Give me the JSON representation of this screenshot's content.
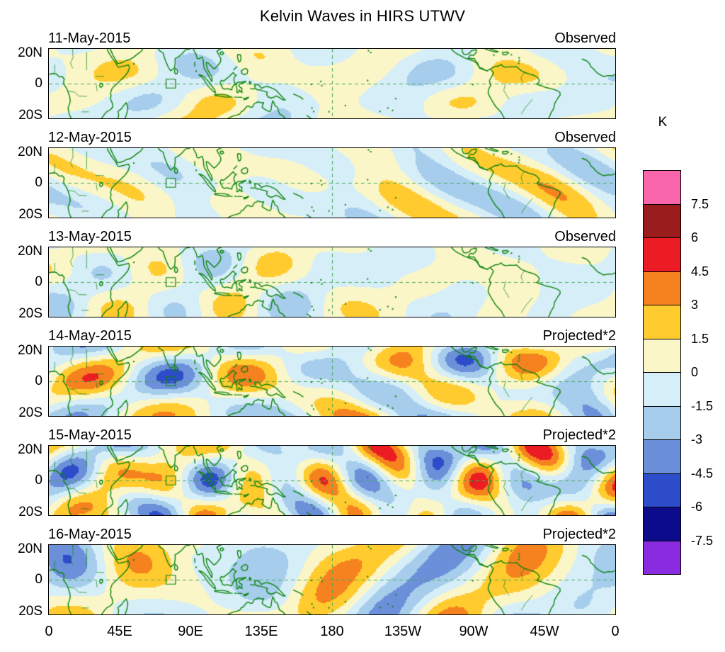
{
  "figure": {
    "title": "Kelvin Waves in HIRS UTWV"
  },
  "axes": {
    "x_ticks": [
      "0",
      "45E",
      "90E",
      "135E",
      "180",
      "135W",
      "90W",
      "45W",
      "0"
    ],
    "y_ticks": [
      "20N",
      "0",
      "20S"
    ]
  },
  "panels": [
    {
      "date": "11-May-2015",
      "label": "Observed"
    },
    {
      "date": "12-May-2015",
      "label": "Observed"
    },
    {
      "date": "13-May-2015",
      "label": "Observed"
    },
    {
      "date": "14-May-2015",
      "label": "Projected*2"
    },
    {
      "date": "15-May-2015",
      "label": "Projected*2"
    },
    {
      "date": "16-May-2015",
      "label": "Projected*2"
    }
  ],
  "colorbar": {
    "title": "K",
    "tick_labels": [
      "7.5",
      "6",
      "4.5",
      "3",
      "1.5",
      "0",
      "-1.5",
      "-3",
      "-4.5",
      "-6",
      "-7.5"
    ],
    "cell_colors_top_to_bottom": [
      "#F966AC",
      "#9B1C1C",
      "#EC1C24",
      "#F5821F",
      "#FFCB2E",
      "#FAF6C8",
      "#D6EEF8",
      "#A6CDEC",
      "#6B8FD9",
      "#2C4CC9",
      "#0B0B8B",
      "#8A2BE2"
    ]
  },
  "chart_data": {
    "type": "heatmap",
    "title": "Kelvin Waves in HIRS UTWV",
    "units": "K",
    "variable": "Kelvin-wave anomalies in HIRS upper-tropospheric water vapor, filled contours over tropical maps with green coastlines",
    "panels": [
      {
        "date": "11-May-2015",
        "source": "Observed"
      },
      {
        "date": "12-May-2015",
        "source": "Observed"
      },
      {
        "date": "13-May-2015",
        "source": "Observed"
      },
      {
        "date": "14-May-2015",
        "source": "Projected*2"
      },
      {
        "date": "15-May-2015",
        "source": "Projected*2"
      },
      {
        "date": "16-May-2015",
        "source": "Projected*2"
      }
    ],
    "x_axis": {
      "tick_labels": [
        "0",
        "45E",
        "90E",
        "135E",
        "180",
        "135W",
        "90W",
        "45W",
        "0"
      ],
      "range_deg_east": [
        0,
        360
      ]
    },
    "y_axis": {
      "tick_labels": [
        "20N",
        "0",
        "20S"
      ],
      "range_deg_lat": [
        -20,
        20
      ]
    },
    "contour_interval_K": 1.5,
    "color_scale": {
      "levels": [
        -7.5,
        -6,
        -4.5,
        -3,
        -1.5,
        0,
        1.5,
        3,
        4.5,
        6,
        7.5
      ],
      "colors_low_to_high": [
        "#8A2BE2",
        "#0B0B8B",
        "#2C4CC9",
        "#6B8FD9",
        "#A6CDEC",
        "#D6EEF8",
        "#FAF6C8",
        "#FFCB2E",
        "#F5821F",
        "#EC1C24",
        "#9B1C1C",
        "#F966AC"
      ]
    },
    "annotations": {
      "dashed_equator_line": true,
      "dashed_dateline_180": true,
      "equatorial_index_box_deg": {
        "lon": [
          74.5,
          80.5
        ],
        "lat": [
          -2.8,
          2.8
        ]
      }
    },
    "relative_amplitude": {
      "Observed": 1.0,
      "Projected*2": 2.0
    }
  }
}
